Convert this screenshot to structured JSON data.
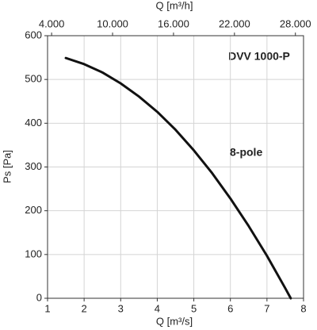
{
  "chart_data": {
    "type": "line",
    "title": "DVV 1000-P",
    "x_label": "Q [m³/s]",
    "x2_label": "Q [m³/h]",
    "y_label": "Ps [Pa]",
    "x": [
      1.5,
      2,
      2.5,
      3,
      3.5,
      4,
      4.5,
      5,
      5.5,
      6,
      6.5,
      7,
      7.5,
      7.65
    ],
    "series": [
      {
        "name": "8-pole",
        "color": "#111111",
        "values": [
          549,
          535,
          516,
          491,
          461,
          426,
          385,
          338,
          286,
          228,
          165,
          97,
          23,
          0
        ]
      }
    ],
    "xlim": [
      1,
      8
    ],
    "xticks": [
      1,
      2,
      3,
      4,
      5,
      6,
      7,
      8
    ],
    "x2lim": [
      3600,
      28800
    ],
    "x2ticks": [
      {
        "value": 4000,
        "label": "4.000"
      },
      {
        "value": 10000,
        "label": "10.000"
      },
      {
        "value": 16000,
        "label": "16.000"
      },
      {
        "value": 22000,
        "label": "22.000"
      },
      {
        "value": 28000,
        "label": "28.000"
      }
    ],
    "ylim": [
      0,
      600
    ],
    "yticks": [
      0,
      100,
      200,
      300,
      400,
      500,
      600
    ],
    "grid": true
  }
}
